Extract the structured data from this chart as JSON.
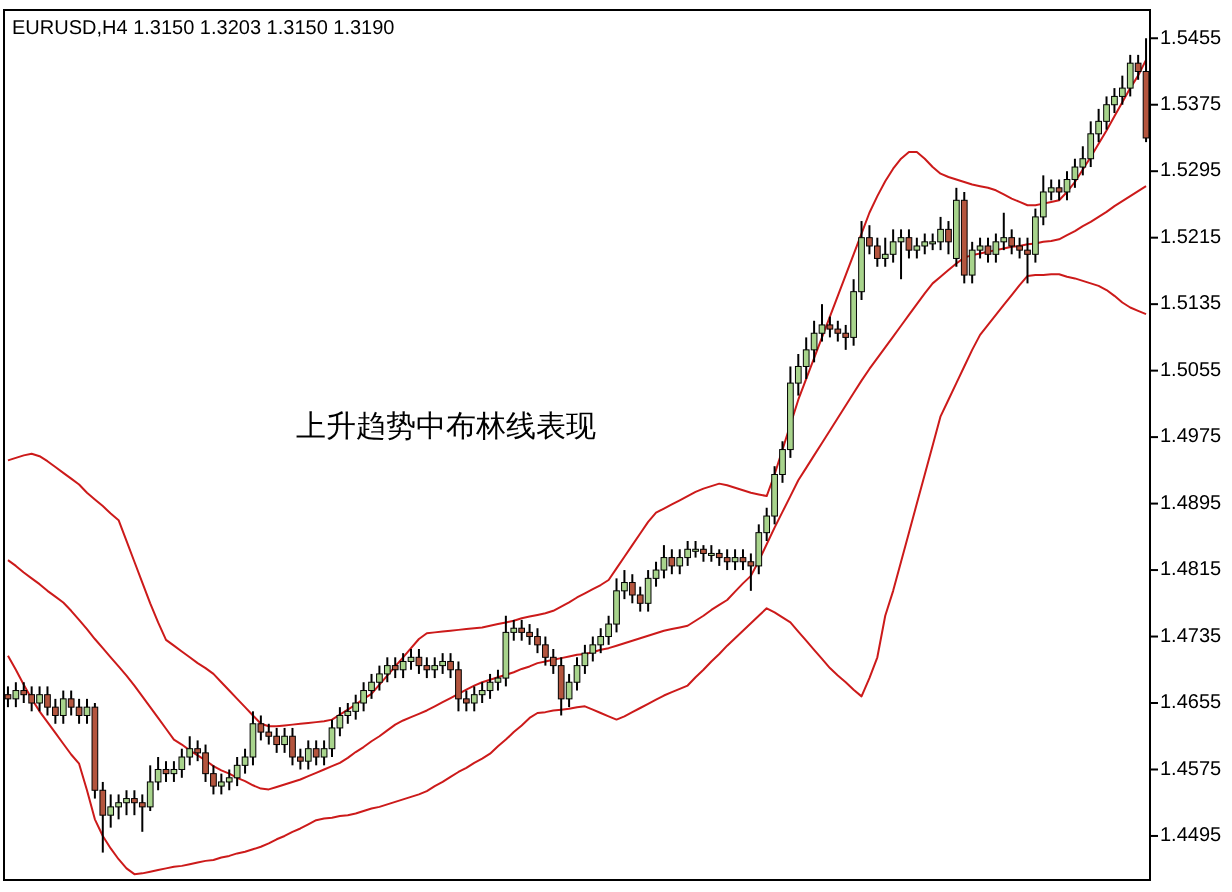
{
  "chart_data": {
    "type": "candlestick",
    "title": "EURUSD,H4  1.3150 1.3203 1.3150 1.3190",
    "annotations": [
      "上升趋势中布林线表现"
    ],
    "categories": [
      null,
      null,
      null,
      null,
      null,
      null,
      null,
      null,
      null,
      null,
      null,
      null,
      null,
      null,
      null,
      null,
      null,
      null,
      null,
      null,
      null,
      null,
      null,
      null,
      null,
      null,
      null,
      null,
      null,
      null,
      null,
      null,
      null,
      null,
      null,
      null,
      null,
      null,
      null,
      null,
      null,
      null,
      null,
      null,
      null,
      null,
      null,
      null,
      null,
      null,
      null,
      null,
      null,
      null,
      null,
      null,
      null,
      null,
      null,
      null,
      null,
      null,
      null,
      null,
      null,
      null,
      null,
      null,
      null,
      null,
      null,
      null,
      null,
      null,
      null,
      null,
      null,
      null,
      null,
      null,
      null,
      null,
      null,
      null,
      null,
      null,
      null,
      null,
      null,
      null,
      null,
      null,
      null,
      null,
      null,
      null,
      null,
      null,
      null,
      null,
      null,
      null,
      null,
      null,
      null,
      null,
      null,
      null,
      null,
      null,
      null,
      null,
      null,
      null,
      null,
      null,
      null,
      null,
      null,
      null,
      null,
      null,
      null,
      null,
      null,
      null,
      null,
      null,
      null,
      null,
      null,
      null,
      null,
      null,
      null,
      null,
      null,
      null,
      null,
      null,
      null,
      null,
      null,
      null,
      null
    ],
    "colors": [
      "#b4553e",
      "#a8d48c",
      "#b4553e",
      "#b4553e",
      "#a8d48c",
      "#b4553e",
      "#b4553e",
      "#a8d48c",
      "#b4553e",
      "#b4553e",
      "#a8d48c",
      "#b4553e",
      "#b4553e",
      "#a8d48c",
      "#a8d48c",
      "#a8d48c",
      "#b4553e",
      "#b4553e",
      "#a8d48c",
      "#a8d48c",
      "#b4553e",
      "#a8d48c",
      "#a8d48c",
      "#a8d48c",
      "#b4553e",
      "#b4553e",
      "#b4553e",
      "#a8d48c",
      "#a8d48c",
      "#a8d48c",
      "#a8d48c",
      "#a8d48c",
      "#b4553e",
      "#b4553e",
      "#b4553e",
      "#a8d48c",
      "#b4553e",
      "#b4553e",
      "#a8d48c",
      "#b4553e",
      "#a8d48c",
      "#a8d48c",
      "#a8d48c",
      "#a8d48c",
      "#a8d48c",
      "#a8d48c",
      "#a8d48c",
      "#a8d48c",
      "#a8d48c",
      "#b4553e",
      "#a8d48c",
      "#a8d48c",
      "#b4553e",
      "#b4553e",
      "#a8d48c",
      "#a8d48c",
      "#b4553e",
      "#b4553e",
      "#b4553e",
      "#a8d48c",
      "#a8d48c",
      "#a8d48c",
      "#a8d48c",
      "#a8d48c",
      "#a8d48c",
      "#b4553e",
      "#b4553e",
      "#b4553e",
      "#b4553e",
      "#b4553e",
      "#b4553e",
      "#a8d48c",
      "#a8d48c",
      "#a8d48c",
      "#a8d48c",
      "#a8d48c",
      "#a8d48c",
      "#a8d48c",
      "#a8d48c",
      "#b4553e",
      "#b4553e",
      "#a8d48c",
      "#a8d48c",
      "#a8d48c",
      "#b4553e",
      "#a8d48c",
      "#a8d48c",
      "#a8d48c",
      "#b4553e",
      "#a8d48c",
      "#b4553e",
      "#b4553e",
      "#a8d48c",
      "#b4553e",
      "#b4553e",
      "#a8d48c",
      "#a8d48c",
      "#a8d48c",
      "#a8d48c",
      "#a8d48c",
      "#a8d48c",
      "#a8d48c",
      "#a8d48c",
      "#a8d48c",
      "#b4553e",
      "#b4553e",
      "#b4553e",
      "#a8d48c",
      "#a8d48c",
      "#b4553e",
      "#b4553e",
      "#a8d48c",
      "#a8d48c",
      "#a8d48c",
      "#b4553e",
      "#a8d48c",
      "#a8d48c",
      "#a8d48c",
      "#a8d48c",
      "#b4553e",
      "#a8d48c",
      "#b4553e",
      "#a8d48c",
      "#a8d48c",
      "#b4553e",
      "#a8d48c",
      "#a8d48c",
      "#b4553e",
      "#b4553e",
      "#b4553e",
      "#a8d48c",
      "#a8d48c",
      "#a8d48c",
      "#b4553e",
      "#a8d48c",
      "#a8d48c",
      "#a8d48c",
      "#a8d48c",
      "#a8d48c",
      "#a8d48c",
      "#a8d48c",
      "#a8d48c",
      "#a8d48c",
      "#b4553e",
      "#b4553e"
    ],
    "ohlc": [
      [
        1.4665,
        1.4675,
        1.465,
        1.466
      ],
      [
        1.466,
        1.468,
        1.465,
        1.467
      ],
      [
        1.467,
        1.468,
        1.4655,
        1.4665
      ],
      [
        1.4665,
        1.4675,
        1.4645,
        1.4655
      ],
      [
        1.4655,
        1.4675,
        1.4645,
        1.4665
      ],
      [
        1.4665,
        1.4675,
        1.464,
        1.465
      ],
      [
        1.465,
        1.466,
        1.463,
        1.464
      ],
      [
        1.464,
        1.467,
        1.463,
        1.466
      ],
      [
        1.466,
        1.467,
        1.464,
        1.465
      ],
      [
        1.465,
        1.466,
        1.463,
        1.464
      ],
      [
        1.464,
        1.466,
        1.463,
        1.465
      ],
      [
        1.465,
        1.4655,
        1.454,
        1.455
      ],
      [
        1.455,
        1.456,
        1.4475,
        1.452
      ],
      [
        1.452,
        1.4545,
        1.4505,
        1.453
      ],
      [
        1.453,
        1.4545,
        1.4515,
        1.4535
      ],
      [
        1.4535,
        1.455,
        1.452,
        1.454
      ],
      [
        1.454,
        1.455,
        1.452,
        1.4535
      ],
      [
        1.4535,
        1.4545,
        1.45,
        1.453
      ],
      [
        1.453,
        1.458,
        1.4525,
        1.456
      ],
      [
        1.456,
        1.459,
        1.455,
        1.4575
      ],
      [
        1.4575,
        1.4585,
        1.456,
        1.457
      ],
      [
        1.457,
        1.4585,
        1.456,
        1.4575
      ],
      [
        1.4575,
        1.46,
        1.4565,
        1.459
      ],
      [
        1.459,
        1.4615,
        1.458,
        1.46
      ],
      [
        1.46,
        1.461,
        1.4585,
        1.4595
      ],
      [
        1.4595,
        1.4605,
        1.456,
        1.457
      ],
      [
        1.457,
        1.458,
        1.4545,
        1.4555
      ],
      [
        1.4555,
        1.457,
        1.4545,
        1.456
      ],
      [
        1.456,
        1.4575,
        1.455,
        1.4565
      ],
      [
        1.4565,
        1.459,
        1.4555,
        1.458
      ],
      [
        1.458,
        1.46,
        1.457,
        1.459
      ],
      [
        1.459,
        1.4645,
        1.458,
        1.463
      ],
      [
        1.463,
        1.464,
        1.461,
        1.462
      ],
      [
        1.462,
        1.463,
        1.4605,
        1.4615
      ],
      [
        1.4615,
        1.4625,
        1.4595,
        1.4605
      ],
      [
        1.4605,
        1.4625,
        1.4595,
        1.4615
      ],
      [
        1.4615,
        1.4625,
        1.458,
        1.459
      ],
      [
        1.459,
        1.46,
        1.4575,
        1.4585
      ],
      [
        1.4585,
        1.461,
        1.4575,
        1.46
      ],
      [
        1.46,
        1.461,
        1.458,
        1.459
      ],
      [
        1.459,
        1.461,
        1.458,
        1.46
      ],
      [
        1.46,
        1.4635,
        1.459,
        1.4625
      ],
      [
        1.4625,
        1.465,
        1.4615,
        1.464
      ],
      [
        1.464,
        1.4655,
        1.463,
        1.4645
      ],
      [
        1.4645,
        1.4665,
        1.4635,
        1.4655
      ],
      [
        1.4655,
        1.468,
        1.4645,
        1.467
      ],
      [
        1.467,
        1.469,
        1.466,
        1.468
      ],
      [
        1.468,
        1.47,
        1.467,
        1.469
      ],
      [
        1.469,
        1.471,
        1.468,
        1.47
      ],
      [
        1.47,
        1.471,
        1.4685,
        1.4695
      ],
      [
        1.4695,
        1.4715,
        1.4685,
        1.4705
      ],
      [
        1.4705,
        1.472,
        1.4695,
        1.471
      ],
      [
        1.471,
        1.472,
        1.469,
        1.47
      ],
      [
        1.47,
        1.471,
        1.4685,
        1.4695
      ],
      [
        1.4695,
        1.471,
        1.4685,
        1.47
      ],
      [
        1.47,
        1.4715,
        1.469,
        1.4705
      ],
      [
        1.4705,
        1.4715,
        1.4685,
        1.4695
      ],
      [
        1.4695,
        1.4705,
        1.4645,
        1.466
      ],
      [
        1.466,
        1.467,
        1.4645,
        1.4655
      ],
      [
        1.4655,
        1.4675,
        1.4645,
        1.4665
      ],
      [
        1.4665,
        1.468,
        1.4655,
        1.467
      ],
      [
        1.467,
        1.469,
        1.466,
        1.468
      ],
      [
        1.468,
        1.4695,
        1.467,
        1.4685
      ],
      [
        1.4685,
        1.476,
        1.4675,
        1.474
      ],
      [
        1.474,
        1.4755,
        1.473,
        1.4745
      ],
      [
        1.4745,
        1.4755,
        1.473,
        1.474
      ],
      [
        1.474,
        1.475,
        1.4725,
        1.4735
      ],
      [
        1.4735,
        1.4745,
        1.4715,
        1.4725
      ],
      [
        1.4725,
        1.4735,
        1.47,
        1.471
      ],
      [
        1.471,
        1.472,
        1.469,
        1.47
      ],
      [
        1.47,
        1.471,
        1.464,
        1.466
      ],
      [
        1.466,
        1.469,
        1.465,
        1.468
      ],
      [
        1.468,
        1.471,
        1.467,
        1.47
      ],
      [
        1.47,
        1.4725,
        1.469,
        1.4715
      ],
      [
        1.4715,
        1.4735,
        1.4705,
        1.4725
      ],
      [
        1.4725,
        1.4745,
        1.4715,
        1.4735
      ],
      [
        1.4735,
        1.476,
        1.4725,
        1.475
      ],
      [
        1.475,
        1.4805,
        1.474,
        1.479
      ],
      [
        1.479,
        1.4815,
        1.478,
        1.48
      ],
      [
        1.48,
        1.481,
        1.4775,
        1.4785
      ],
      [
        1.4785,
        1.4795,
        1.4765,
        1.4775
      ],
      [
        1.4775,
        1.4815,
        1.4765,
        1.4805
      ],
      [
        1.4805,
        1.4825,
        1.4795,
        1.4815
      ],
      [
        1.4815,
        1.4845,
        1.4805,
        1.483
      ],
      [
        1.483,
        1.484,
        1.481,
        1.482
      ],
      [
        1.482,
        1.484,
        1.481,
        1.483
      ],
      [
        1.483,
        1.485,
        1.482,
        1.484
      ],
      [
        1.484,
        1.485,
        1.483,
        1.484
      ],
      [
        1.484,
        1.4845,
        1.4825,
        1.4835
      ],
      [
        1.4835,
        1.4845,
        1.4825,
        1.4835
      ],
      [
        1.4835,
        1.484,
        1.482,
        1.483
      ],
      [
        1.483,
        1.484,
        1.4815,
        1.4825
      ],
      [
        1.4825,
        1.484,
        1.4815,
        1.483
      ],
      [
        1.483,
        1.484,
        1.4815,
        1.4825
      ],
      [
        1.4825,
        1.4835,
        1.479,
        1.482
      ],
      [
        1.482,
        1.487,
        1.481,
        1.486
      ],
      [
        1.486,
        1.489,
        1.485,
        1.488
      ],
      [
        1.488,
        1.494,
        1.487,
        1.493
      ],
      [
        1.493,
        1.497,
        1.492,
        1.496
      ],
      [
        1.496,
        1.506,
        1.495,
        1.504
      ],
      [
        1.504,
        1.5075,
        1.5025,
        1.506
      ],
      [
        1.506,
        1.5095,
        1.5045,
        1.508
      ],
      [
        1.508,
        1.5115,
        1.5065,
        1.51
      ],
      [
        1.51,
        1.5135,
        1.509,
        1.511
      ],
      [
        1.511,
        1.512,
        1.5095,
        1.5105
      ],
      [
        1.5105,
        1.5115,
        1.509,
        1.51
      ],
      [
        1.51,
        1.511,
        1.508,
        1.5095
      ],
      [
        1.5095,
        1.5165,
        1.5085,
        1.515
      ],
      [
        1.515,
        1.5235,
        1.514,
        1.5215
      ],
      [
        1.5215,
        1.523,
        1.5195,
        1.5205
      ],
      [
        1.5205,
        1.5215,
        1.518,
        1.519
      ],
      [
        1.519,
        1.5215,
        1.518,
        1.5195
      ],
      [
        1.5195,
        1.5225,
        1.5185,
        1.521
      ],
      [
        1.521,
        1.5225,
        1.5165,
        1.5215
      ],
      [
        1.5215,
        1.5225,
        1.519,
        1.52
      ],
      [
        1.52,
        1.5215,
        1.519,
        1.5205
      ],
      [
        1.5205,
        1.522,
        1.5195,
        1.521
      ],
      [
        1.521,
        1.522,
        1.52,
        1.521
      ],
      [
        1.521,
        1.524,
        1.52,
        1.5225
      ],
      [
        1.5225,
        1.5235,
        1.5195,
        1.521
      ],
      [
        1.519,
        1.5275,
        1.518,
        1.526
      ],
      [
        1.526,
        1.527,
        1.516,
        1.517
      ],
      [
        1.517,
        1.521,
        1.516,
        1.52
      ],
      [
        1.52,
        1.5215,
        1.519,
        1.5205
      ],
      [
        1.5205,
        1.5215,
        1.5185,
        1.5195
      ],
      [
        1.5195,
        1.522,
        1.5185,
        1.521
      ],
      [
        1.521,
        1.5245,
        1.52,
        1.5215
      ],
      [
        1.5215,
        1.5225,
        1.5195,
        1.5205
      ],
      [
        1.5205,
        1.5215,
        1.519,
        1.52
      ],
      [
        1.52,
        1.5215,
        1.516,
        1.5195
      ],
      [
        1.5195,
        1.525,
        1.5185,
        1.524
      ],
      [
        1.524,
        1.529,
        1.523,
        1.527
      ],
      [
        1.527,
        1.5285,
        1.526,
        1.5275
      ],
      [
        1.5275,
        1.5285,
        1.526,
        1.527
      ],
      [
        1.527,
        1.5295,
        1.526,
        1.5285
      ],
      [
        1.5285,
        1.531,
        1.5275,
        1.53
      ],
      [
        1.53,
        1.5325,
        1.529,
        1.531
      ],
      [
        1.531,
        1.5355,
        1.53,
        1.534
      ],
      [
        1.534,
        1.537,
        1.533,
        1.5355
      ],
      [
        1.5355,
        1.5385,
        1.5345,
        1.5375
      ],
      [
        1.5375,
        1.5395,
        1.5365,
        1.5385
      ],
      [
        1.5385,
        1.541,
        1.5375,
        1.5395
      ],
      [
        1.5395,
        1.5435,
        1.5385,
        1.5425
      ],
      [
        1.5425,
        1.5435,
        1.5405,
        1.5415
      ],
      [
        1.5415,
        1.5455,
        1.533,
        1.5335
      ]
    ],
    "series": [
      {
        "type": "line",
        "color": "#cc1a1a",
        "values": [
          1.4947,
          1.495,
          1.4953,
          1.4955,
          1.4952,
          1.4946,
          1.4939,
          1.4932,
          1.4925,
          1.4918,
          1.4908,
          1.49,
          1.4892,
          1.4883,
          1.4875,
          1.485,
          1.4825,
          1.48,
          1.4775,
          1.4752,
          1.4731,
          1.4724,
          1.4717,
          1.471,
          1.4703,
          1.4697,
          1.469,
          1.468,
          1.467,
          1.466,
          1.465,
          1.464,
          1.463,
          1.4627,
          1.4627,
          1.4628,
          1.4629,
          1.463,
          1.4631,
          1.4632,
          1.4633,
          1.4635,
          1.4641,
          1.4647,
          1.4653,
          1.466,
          1.4666,
          1.4677,
          1.4688,
          1.4699,
          1.471,
          1.4721,
          1.4732,
          1.4739,
          1.474,
          1.4741,
          1.4742,
          1.4743,
          1.4744,
          1.4745,
          1.4746,
          1.4748,
          1.475,
          1.4752,
          1.4754,
          1.4757,
          1.4759,
          1.4761,
          1.4763,
          1.4766,
          1.4771,
          1.4776,
          1.4782,
          1.4787,
          1.4792,
          1.4797,
          1.4803,
          1.4817,
          1.4831,
          1.4845,
          1.4859,
          1.4873,
          1.4884,
          1.4889,
          1.4894,
          1.4899,
          1.4904,
          1.4909,
          1.4913,
          1.4916,
          1.4919,
          1.4917,
          1.4914,
          1.4911,
          1.4908,
          1.4906,
          1.4904,
          1.493,
          1.496,
          null,
          1.502,
          1.5045,
          1.507,
          1.5095,
          1.512,
          1.5145,
          1.517,
          1.5195,
          1.522,
          1.5245,
          1.5265,
          1.5283,
          1.5298,
          1.531,
          1.5318,
          1.5318,
          1.531,
          1.53,
          1.5292,
          1.5288,
          1.5285,
          1.5282,
          1.5279,
          1.5277,
          1.5275,
          1.5272,
          1.5267,
          1.5262,
          1.5258,
          1.5254,
          1.5254,
          1.5256,
          1.5258,
          1.526,
          1.527,
          1.5282,
          1.5297,
          1.5312,
          1.5328,
          1.5344,
          1.5361,
          1.5378,
          1.5395,
          1.541,
          1.5429
        ]
      },
      {
        "type": "line",
        "color": "#cc1a1a",
        "values": [
          1.4827,
          1.482,
          1.4812,
          1.4805,
          1.4798,
          1.479,
          1.4783,
          1.4776,
          1.4766,
          1.4755,
          1.4744,
          1.4732,
          1.4721,
          1.471,
          1.4699,
          1.4688,
          1.4676,
          1.4663,
          1.465,
          1.4637,
          1.4624,
          1.4611,
          1.4605,
          1.4598,
          1.4592,
          1.4586,
          1.4579,
          1.4574,
          1.457,
          1.4565,
          1.4561,
          1.4556,
          1.4552,
          1.4551,
          1.4554,
          1.4557,
          1.456,
          1.4563,
          1.4567,
          1.4571,
          1.4575,
          1.4579,
          1.4583,
          1.4589,
          1.4596,
          1.4602,
          1.4609,
          1.4615,
          1.4622,
          1.4629,
          1.4634,
          1.4638,
          1.4642,
          1.4646,
          1.4651,
          1.4656,
          1.4661,
          1.4666,
          1.4671,
          1.4676,
          1.468,
          1.4683,
          1.4686,
          1.4689,
          1.4692,
          1.4696,
          1.4699,
          1.4703,
          1.4705,
          1.4707,
          1.4709,
          1.4711,
          1.4713,
          1.4714,
          1.4716,
          1.4719,
          1.4721,
          1.4724,
          1.4727,
          1.473,
          1.4733,
          1.4736,
          1.4739,
          1.4742,
          1.4744,
          1.4746,
          1.4748,
          1.4754,
          1.476,
          1.4767,
          1.4773,
          1.4779,
          1.4789,
          1.4799,
          1.4808,
          1.4826,
          1.4846,
          1.4866,
          1.4885,
          1.4904,
          1.4923,
          1.4938,
          1.4953,
          1.4968,
          1.4983,
          1.4998,
          1.5013,
          1.5028,
          1.5043,
          1.5057,
          1.507,
          1.5083,
          1.5096,
          1.5109,
          1.5122,
          1.5135,
          1.5148,
          1.516,
          1.5168,
          1.5176,
          1.5184,
          1.5191,
          1.5194,
          1.5196,
          1.5198,
          1.52,
          1.5202,
          1.5204,
          1.5205,
          1.5207,
          1.5208,
          1.521,
          1.5211,
          1.5213,
          1.5218,
          1.5223,
          1.5229,
          1.5234,
          1.524,
          1.5246,
          1.5253,
          1.5259,
          1.5265,
          1.5271,
          1.5277
        ]
      },
      {
        "type": "line",
        "color": "#cc1a1a",
        "values": [
          1.4712,
          1.4695,
          1.4677,
          1.466,
          1.4645,
          1.4632,
          1.4619,
          1.4606,
          1.4593,
          1.4582,
          1.455,
          1.4515,
          1.4495,
          1.448,
          1.4467,
          1.4456,
          1.4449,
          1.445,
          1.4452,
          1.4454,
          1.4456,
          1.4458,
          1.4459,
          1.4461,
          1.4463,
          1.4465,
          1.4466,
          1.4469,
          1.4471,
          1.4474,
          1.4476,
          1.4479,
          1.4482,
          1.4486,
          1.4491,
          1.4495,
          1.45,
          1.4504,
          1.4509,
          1.4514,
          1.4516,
          1.4517,
          1.4519,
          1.452,
          1.4522,
          1.4525,
          1.4528,
          1.453,
          1.4533,
          1.4536,
          1.4539,
          1.4542,
          1.4545,
          1.4549,
          1.4555,
          1.456,
          1.4566,
          1.4572,
          1.4577,
          1.4583,
          1.4588,
          1.4594,
          1.4603,
          1.4611,
          1.462,
          1.4628,
          1.4637,
          1.4643,
          1.4644,
          1.4646,
          1.4647,
          1.4648,
          1.465,
          1.4651,
          1.4647,
          1.4643,
          1.4639,
          1.4635,
          1.4639,
          1.4644,
          1.4649,
          1.4654,
          1.4659,
          1.4664,
          1.4668,
          1.4672,
          1.4676,
          1.4686,
          1.4695,
          1.4705,
          1.4714,
          1.4724,
          1.4733,
          1.4742,
          1.4751,
          1.476,
          1.4769,
          1.4764,
          1.4758,
          1.4752,
          1.4741,
          1.473,
          1.4719,
          1.4708,
          1.4697,
          1.4688,
          1.468,
          1.4671,
          1.4663,
          1.4685,
          1.471,
          1.476,
          1.479,
          1.4825,
          1.486,
          1.4895,
          1.493,
          1.4965,
          1.5,
          1.502,
          1.504,
          1.506,
          1.508,
          1.5098,
          1.511,
          1.5122,
          1.5134,
          1.5146,
          1.5158,
          1.5169,
          1.517,
          1.517,
          1.5171,
          1.5171,
          1.5168,
          1.5166,
          1.5163,
          1.516,
          1.5157,
          1.5152,
          1.5145,
          1.5137,
          1.5131,
          1.5127,
          1.5123
        ]
      }
    ],
    "ylim": [
      1.4442,
      1.5489
    ],
    "yticks": [
      1.4495,
      1.4575,
      1.4655,
      1.4735,
      1.4815,
      1.4895,
      1.4975,
      1.5055,
      1.5135,
      1.5215,
      1.5295,
      1.5375,
      1.5455
    ],
    "tick_labels": "y"
  }
}
